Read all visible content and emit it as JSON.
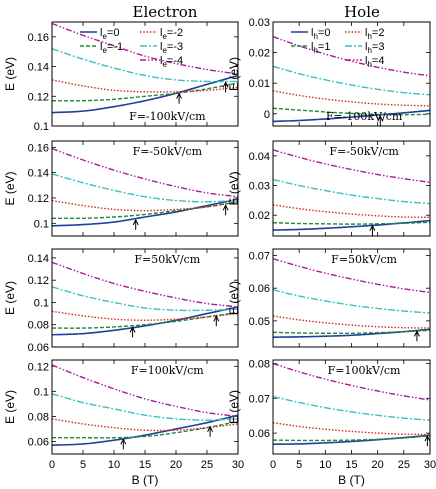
{
  "column_titles": [
    "Electron",
    "Hole"
  ],
  "styles": [
    {
      "color": "#1f3f9a",
      "dash": ""
    },
    {
      "color": "#1f8a3a",
      "dash": "4,2"
    },
    {
      "color": "#d42a1e",
      "dash": "1.5,1.8"
    },
    {
      "color": "#38c2c0",
      "dash": "7,2,2,2"
    },
    {
      "color": "#b0189a",
      "dash": "6,2,1.5,2,1.5,2"
    }
  ],
  "chart_data": [
    {
      "type": "line",
      "panel": "electron-1",
      "annotation": "F=-100kV/cm",
      "xlabel": "",
      "ylabel": "E (eV)",
      "xlim": [
        0,
        30
      ],
      "ylim": [
        0.1,
        0.17
      ],
      "yticks": [
        0.1,
        0.12,
        0.14,
        0.16
      ],
      "ytick_labels": [
        "0.1",
        "0.12",
        "0.14",
        "0.16"
      ],
      "xticks": [
        0,
        5,
        10,
        15,
        20,
        25,
        30
      ],
      "xtick_labels": [],
      "legend": [
        {
          "base": "l",
          "sub": "e",
          "rest": "=0"
        },
        {
          "base": "l",
          "sub": "e",
          "rest": "=-1"
        },
        {
          "base": "l",
          "sub": "e",
          "rest": "=-2"
        },
        {
          "base": "l",
          "sub": "e",
          "rest": "=-3"
        },
        {
          "base": "l",
          "sub": "e",
          "rest": "=-4"
        }
      ],
      "x": [
        0,
        5,
        10,
        15,
        20,
        25,
        30
      ],
      "series": [
        {
          "values": [
            0.109,
            0.11,
            0.113,
            0.117,
            0.122,
            0.128,
            0.134
          ]
        },
        {
          "values": [
            0.117,
            0.117,
            0.118,
            0.12,
            0.122,
            0.125,
            0.129
          ]
        },
        {
          "values": [
            0.131,
            0.127,
            0.124,
            0.123,
            0.123,
            0.124,
            0.126
          ]
        },
        {
          "values": [
            0.152,
            0.145,
            0.139,
            0.134,
            0.131,
            0.13,
            0.13
          ]
        },
        {
          "values": [
            0.169,
            0.161,
            0.154,
            0.147,
            0.142,
            0.138,
            0.135
          ]
        }
      ],
      "arrows": [
        {
          "x": 20.5,
          "y": 0.1225
        },
        {
          "x": 28,
          "y": 0.13
        }
      ]
    },
    {
      "type": "line",
      "panel": "electron-2",
      "annotation": "F=-50kV/cm",
      "xlabel": "",
      "ylabel": "E (eV)",
      "xlim": [
        0,
        30
      ],
      "ylim": [
        0.09,
        0.165
      ],
      "yticks": [
        0.1,
        0.12,
        0.14,
        0.16
      ],
      "ytick_labels": [
        "0.1",
        "0.12",
        "0.14",
        "0.16"
      ],
      "xticks": [
        0,
        5,
        10,
        15,
        20,
        25,
        30
      ],
      "xtick_labels": [],
      "x": [
        0,
        5,
        10,
        15,
        20,
        25,
        30
      ],
      "series": [
        {
          "values": [
            0.098,
            0.099,
            0.101,
            0.105,
            0.109,
            0.114,
            0.119
          ]
        },
        {
          "values": [
            0.104,
            0.104,
            0.105,
            0.107,
            0.11,
            0.113,
            0.117
          ]
        },
        {
          "values": [
            0.118,
            0.114,
            0.111,
            0.11,
            0.111,
            0.113,
            0.117
          ]
        },
        {
          "values": [
            0.139,
            0.132,
            0.126,
            0.121,
            0.118,
            0.117,
            0.118
          ]
        },
        {
          "values": [
            0.159,
            0.15,
            0.142,
            0.135,
            0.129,
            0.124,
            0.121
          ]
        }
      ],
      "arrows": [
        {
          "x": 13.5,
          "y": 0.1035
        },
        {
          "x": 28,
          "y": 0.115
        }
      ]
    },
    {
      "type": "line",
      "panel": "electron-3",
      "annotation": "F=50kV/cm",
      "xlabel": "",
      "ylabel": "E (eV)",
      "xlim": [
        0,
        30
      ],
      "ylim": [
        0.06,
        0.148
      ],
      "yticks": [
        0.06,
        0.08,
        0.1,
        0.12,
        0.14
      ],
      "ytick_labels": [
        "0.06",
        "0.08",
        "0.1",
        "0.12",
        "0.14"
      ],
      "xticks": [
        0,
        5,
        10,
        15,
        20,
        25,
        30
      ],
      "xtick_labels": [],
      "x": [
        0,
        5,
        10,
        15,
        20,
        25,
        30
      ],
      "series": [
        {
          "values": [
            0.071,
            0.072,
            0.075,
            0.079,
            0.084,
            0.09,
            0.096
          ]
        },
        {
          "values": [
            0.077,
            0.077,
            0.078,
            0.08,
            0.083,
            0.087,
            0.091
          ]
        },
        {
          "values": [
            0.092,
            0.088,
            0.085,
            0.084,
            0.085,
            0.087,
            0.09
          ]
        },
        {
          "values": [
            0.114,
            0.106,
            0.1,
            0.095,
            0.093,
            0.093,
            0.094
          ]
        },
        {
          "values": [
            0.136,
            0.126,
            0.117,
            0.11,
            0.104,
            0.099,
            0.096
          ]
        }
      ],
      "arrows": [
        {
          "x": 13,
          "y": 0.0785
        },
        {
          "x": 26.5,
          "y": 0.0885
        }
      ]
    },
    {
      "type": "line",
      "panel": "electron-4",
      "annotation": "F=100kV/cm",
      "xlabel": "B (T)",
      "ylabel": "E (eV)",
      "xlim": [
        0,
        30
      ],
      "ylim": [
        0.05,
        0.125
      ],
      "yticks": [
        0.06,
        0.08,
        0.1,
        0.12
      ],
      "ytick_labels": [
        "0.06",
        "0.08",
        "0.1",
        "0.12"
      ],
      "xticks": [
        0,
        5,
        10,
        15,
        20,
        25,
        30
      ],
      "xtick_labels": [
        "0",
        "5",
        "10",
        "15",
        "20",
        "25",
        "30"
      ],
      "x": [
        0,
        5,
        10,
        15,
        20,
        25,
        30
      ],
      "series": [
        {
          "values": [
            0.057,
            0.058,
            0.061,
            0.065,
            0.07,
            0.075,
            0.081
          ]
        },
        {
          "values": [
            0.063,
            0.063,
            0.063,
            0.064,
            0.067,
            0.071,
            0.076
          ]
        },
        {
          "values": [
            0.078,
            0.074,
            0.071,
            0.069,
            0.069,
            0.071,
            0.074
          ]
        },
        {
          "values": [
            0.098,
            0.091,
            0.086,
            0.081,
            0.078,
            0.077,
            0.078
          ]
        },
        {
          "values": [
            0.121,
            0.111,
            0.102,
            0.094,
            0.088,
            0.083,
            0.08
          ]
        }
      ],
      "arrows": [
        {
          "x": 11.5,
          "y": 0.0625
        },
        {
          "x": 25.5,
          "y": 0.0725
        }
      ]
    },
    {
      "type": "line",
      "panel": "hole-1",
      "annotation": "F=-100kV/cm",
      "xlabel": "",
      "ylabel": "E (eV)",
      "xlim": [
        0,
        30
      ],
      "ylim": [
        -0.004,
        0.03
      ],
      "yticks": [
        0,
        0.01,
        0.02,
        0.03
      ],
      "ytick_labels": [
        "0",
        "0.01",
        "0.02",
        "0.03"
      ],
      "xticks": [
        0,
        5,
        10,
        15,
        20,
        25,
        30
      ],
      "xtick_labels": [],
      "legend": [
        {
          "base": "l",
          "sub": "h",
          "rest": "=0"
        },
        {
          "base": "l",
          "sub": "h",
          "rest": "=1"
        },
        {
          "base": "l",
          "sub": "h",
          "rest": "=2"
        },
        {
          "base": "l",
          "sub": "h",
          "rest": "=3"
        },
        {
          "base": "l",
          "sub": "h",
          "rest": "=4"
        }
      ],
      "x": [
        0,
        5,
        10,
        15,
        20,
        25,
        30
      ],
      "series": [
        {
          "values": [
            -0.0025,
            -0.0022,
            -0.0017,
            -0.0011,
            -0.0004,
            0.0003,
            0.0011
          ]
        },
        {
          "values": [
            0.0018,
            0.0012,
            0.0006,
            0.0001,
            -0.0002,
            -0.0003,
            -0.0002
          ]
        },
        {
          "values": [
            0.0075,
            0.006,
            0.0048,
            0.0039,
            0.0032,
            0.0028,
            0.0026
          ]
        },
        {
          "values": [
            0.0155,
            0.0131,
            0.0111,
            0.0094,
            0.008,
            0.0069,
            0.0062
          ]
        },
        {
          "values": [
            0.0252,
            0.0222,
            0.0195,
            0.0172,
            0.0152,
            0.0136,
            0.0124
          ]
        }
      ],
      "arrows": [
        {
          "x": 20.5,
          "y": -0.0005
        }
      ]
    },
    {
      "type": "line",
      "panel": "hole-2",
      "annotation": "F=-50kV/cm",
      "xlabel": "",
      "ylabel": "E (eV)",
      "xlim": [
        0,
        30
      ],
      "ylim": [
        0.013,
        0.045
      ],
      "yticks": [
        0.02,
        0.03,
        0.04
      ],
      "ytick_labels": [
        "0.02",
        "0.03",
        "0.04"
      ],
      "xticks": [
        0,
        5,
        10,
        15,
        20,
        25,
        30
      ],
      "xtick_labels": [],
      "x": [
        0,
        5,
        10,
        15,
        20,
        25,
        30
      ],
      "series": [
        {
          "values": [
            0.015,
            0.0152,
            0.0156,
            0.0161,
            0.0167,
            0.0174,
            0.0182
          ]
        },
        {
          "values": [
            0.0175,
            0.0172,
            0.0171,
            0.017,
            0.0171,
            0.0173,
            0.0176
          ]
        },
        {
          "values": [
            0.0235,
            0.0222,
            0.0212,
            0.0204,
            0.0198,
            0.0194,
            0.0193
          ]
        },
        {
          "values": [
            0.032,
            0.03,
            0.0283,
            0.0268,
            0.0256,
            0.0246,
            0.0239
          ]
        },
        {
          "values": [
            0.042,
            0.0395,
            0.0373,
            0.0354,
            0.0337,
            0.0323,
            0.0311
          ]
        }
      ],
      "arrows": [
        {
          "x": 19,
          "y": 0.0168
        }
      ]
    },
    {
      "type": "line",
      "panel": "hole-3",
      "annotation": "F=50kV/cm",
      "xlabel": "",
      "ylabel": "E (eV)",
      "xlim": [
        0,
        30
      ],
      "ylim": [
        0.042,
        0.072
      ],
      "yticks": [
        0.05,
        0.06,
        0.07
      ],
      "ytick_labels": [
        "0.05",
        "0.06",
        "0.07"
      ],
      "xticks": [
        0,
        5,
        10,
        15,
        20,
        25,
        30
      ],
      "xtick_labels": [],
      "x": [
        0,
        5,
        10,
        15,
        20,
        25,
        30
      ],
      "series": [
        {
          "values": [
            0.045,
            0.0451,
            0.0453,
            0.0456,
            0.0461,
            0.0467,
            0.0474
          ]
        },
        {
          "values": [
            0.0465,
            0.0463,
            0.0462,
            0.0462,
            0.0464,
            0.0467,
            0.0471
          ]
        },
        {
          "values": [
            0.0515,
            0.0503,
            0.0494,
            0.0487,
            0.0482,
            0.0479,
            0.0478
          ]
        },
        {
          "values": [
            0.0595,
            0.0576,
            0.0561,
            0.0548,
            0.0538,
            0.053,
            0.0524
          ]
        },
        {
          "values": [
            0.069,
            0.0667,
            0.0646,
            0.0628,
            0.0612,
            0.0598,
            0.0587
          ]
        }
      ],
      "arrows": [
        {
          "x": 27.5,
          "y": 0.0471
        }
      ]
    },
    {
      "type": "line",
      "panel": "hole-4",
      "annotation": "F=100kV/cm",
      "xlabel": "B (T)",
      "ylabel": "E (eV)",
      "xlim": [
        0,
        30
      ],
      "ylim": [
        0.054,
        0.081
      ],
      "yticks": [
        0.06,
        0.07,
        0.08
      ],
      "ytick_labels": [
        "0.06",
        "0.07",
        "0.08"
      ],
      "xticks": [
        0,
        5,
        10,
        15,
        20,
        25,
        30
      ],
      "xtick_labels": [
        "0",
        "5",
        "10",
        "15",
        "20",
        "25",
        "30"
      ],
      "x": [
        0,
        5,
        10,
        15,
        20,
        25,
        30
      ],
      "series": [
        {
          "values": [
            0.0568,
            0.0569,
            0.0572,
            0.0576,
            0.0581,
            0.0587,
            0.0594
          ]
        },
        {
          "values": [
            0.058,
            0.0579,
            0.0579,
            0.058,
            0.0582,
            0.0586,
            0.0592
          ]
        },
        {
          "values": [
            0.063,
            0.0619,
            0.0611,
            0.0605,
            0.06,
            0.0597,
            0.0596
          ]
        },
        {
          "values": [
            0.0705,
            0.0688,
            0.0673,
            0.0661,
            0.0651,
            0.0643,
            0.0637
          ]
        },
        {
          "values": [
            0.08,
            0.0776,
            0.0755,
            0.0737,
            0.0721,
            0.0707,
            0.0695
          ]
        }
      ],
      "arrows": [
        {
          "x": 29.5,
          "y": 0.0594
        }
      ]
    }
  ]
}
